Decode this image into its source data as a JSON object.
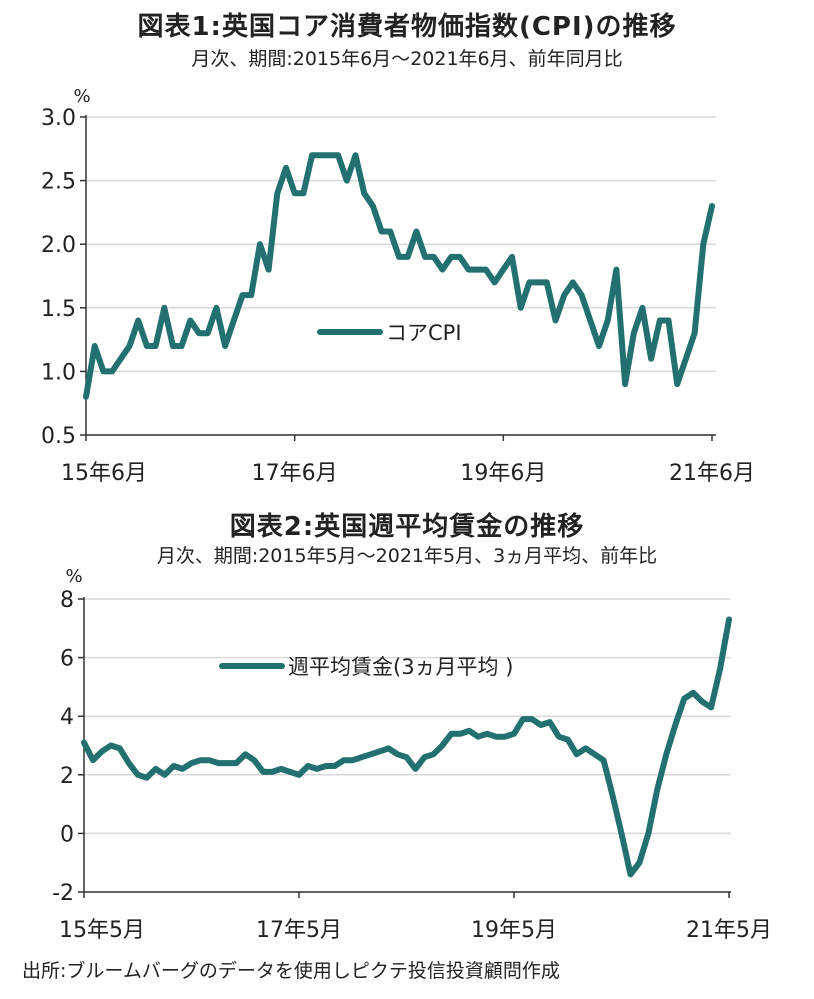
{
  "colors": {
    "line": "#22706F",
    "grid": "#D9D9D9",
    "axis": "#333333"
  },
  "chart_data": [
    {
      "type": "line",
      "title": "図表1:英国コア消費者物価指数(CPI)の推移",
      "subtitle": "月次、期間:2015年6月～2021年6月、前年同月比",
      "unit_label": "%",
      "ylim": [
        0.5,
        3.0
      ],
      "yticks": [
        0.5,
        1.0,
        1.5,
        2.0,
        2.5,
        3.0
      ],
      "ytick_labels": [
        "0.5",
        "1.0",
        "1.5",
        "2.0",
        "2.5",
        "3.0"
      ],
      "xtick_labels": [
        "15年6月",
        "17年6月",
        "19年6月",
        "21年6月"
      ],
      "xtick_index": [
        0,
        24,
        48,
        72
      ],
      "grid": true,
      "legend_position": "center",
      "series": [
        {
          "name": "コアCPI",
          "values": [
            0.8,
            1.2,
            1.0,
            1.0,
            1.1,
            1.2,
            1.4,
            1.2,
            1.2,
            1.5,
            1.2,
            1.2,
            1.4,
            1.3,
            1.3,
            1.5,
            1.2,
            1.4,
            1.6,
            1.6,
            2.0,
            1.8,
            2.4,
            2.6,
            2.4,
            2.4,
            2.7,
            2.7,
            2.7,
            2.7,
            2.5,
            2.7,
            2.4,
            2.3,
            2.1,
            2.1,
            1.9,
            1.9,
            2.1,
            1.9,
            1.9,
            1.8,
            1.9,
            1.9,
            1.8,
            1.8,
            1.8,
            1.7,
            1.8,
            1.9,
            1.5,
            1.7,
            1.7,
            1.7,
            1.4,
            1.6,
            1.7,
            1.6,
            1.4,
            1.2,
            1.4,
            1.8,
            0.9,
            1.3,
            1.5,
            1.1,
            1.4,
            1.4,
            0.9,
            1.1,
            1.3,
            2.0,
            2.3
          ]
        }
      ]
    },
    {
      "type": "line",
      "title": "図表2:英国週平均賃金の推移",
      "subtitle": "月次、期間:2015年5月～2021年5月、3ヵ月平均、前年比",
      "unit_label": "%",
      "ylim": [
        -2,
        8
      ],
      "yticks": [
        -2,
        0,
        2,
        4,
        6,
        8
      ],
      "ytick_labels": [
        "-2",
        "0",
        "2",
        "4",
        "6",
        "8"
      ],
      "xtick_labels": [
        "15年5月",
        "17年5月",
        "19年5月",
        "21年5月"
      ],
      "xtick_index": [
        0,
        24,
        48,
        72
      ],
      "grid": true,
      "legend_position": "upper-center",
      "series": [
        {
          "name": "週平均賃金(3ヵ月平均 )",
          "values": [
            3.1,
            2.5,
            2.8,
            3.0,
            2.9,
            2.4,
            2.0,
            1.9,
            2.2,
            2.0,
            2.3,
            2.2,
            2.4,
            2.5,
            2.5,
            2.4,
            2.4,
            2.4,
            2.7,
            2.5,
            2.1,
            2.1,
            2.2,
            2.1,
            2.0,
            2.3,
            2.2,
            2.3,
            2.3,
            2.5,
            2.5,
            2.6,
            2.7,
            2.8,
            2.9,
            2.7,
            2.6,
            2.2,
            2.6,
            2.7,
            3.0,
            3.4,
            3.4,
            3.5,
            3.3,
            3.4,
            3.3,
            3.3,
            3.4,
            3.9,
            3.9,
            3.7,
            3.8,
            3.3,
            3.2,
            2.7,
            2.9,
            2.7,
            2.5,
            1.3,
            0.0,
            -1.4,
            -1.0,
            0.0,
            1.5,
            2.7,
            3.7,
            4.6,
            4.8,
            4.5,
            4.3,
            5.6,
            7.3
          ]
        }
      ]
    }
  ],
  "source": "出所:ブルームバーグのデータを使用しピクテ投信投資顧問作成"
}
